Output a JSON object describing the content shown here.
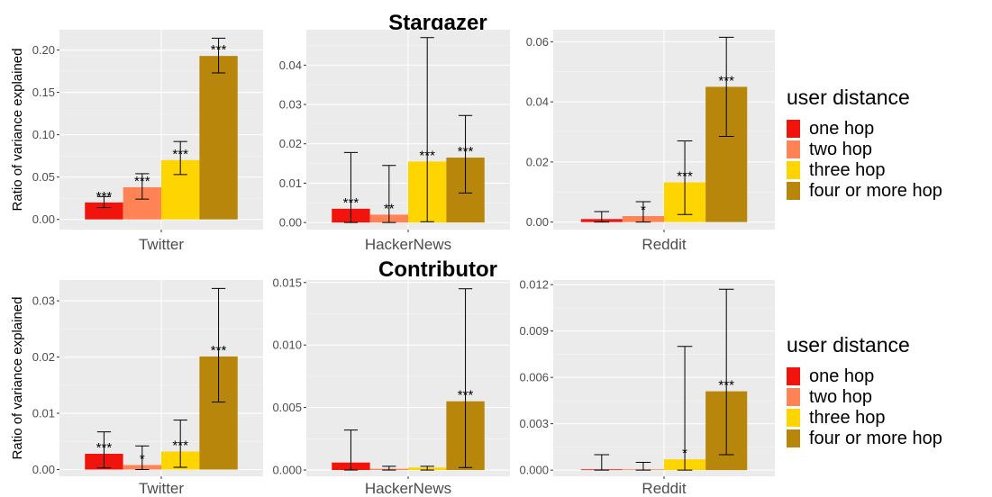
{
  "chart_data": {
    "type": "bar",
    "sections": [
      {
        "title": "Stargazer",
        "ylabel": "Ratio of variance explained",
        "legend": {
          "title": "user distance",
          "items": [
            {
              "label": "one hop",
              "color": "#f0140c"
            },
            {
              "label": "two hop",
              "color": "#ff8355"
            },
            {
              "label": "three hop",
              "color": "#ffd500"
            },
            {
              "label": "four or more hop",
              "color": "#b8860b"
            }
          ]
        },
        "panels": [
          {
            "category": "Twitter",
            "ylim": [
              -0.012,
              0.224
            ],
            "ticks": [
              0.0,
              0.05,
              0.1,
              0.15,
              0.2
            ],
            "tick_labels": [
              "0.00",
              "0.05",
              "0.10",
              "0.15",
              "0.20"
            ],
            "values": [
              0.02,
              0.038,
              0.07,
              0.193
            ],
            "error_low": [
              0.014,
              0.024,
              0.053,
              0.173
            ],
            "error_high": [
              0.027,
              0.054,
              0.092,
              0.214
            ],
            "significance": [
              "***",
              "***",
              "***",
              "***"
            ]
          },
          {
            "category": "HackerNews",
            "ylim": [
              -0.0018,
              0.049
            ],
            "ticks": [
              0.0,
              0.01,
              0.02,
              0.03,
              0.04
            ],
            "tick_labels": [
              "0.00",
              "0.01",
              "0.02",
              "0.03",
              "0.04"
            ],
            "values": [
              0.0035,
              0.002,
              0.0155,
              0.0165
            ],
            "error_low": [
              0.0,
              0.0,
              0.0002,
              0.0075
            ],
            "error_high": [
              0.0178,
              0.0145,
              0.047,
              0.0272
            ],
            "significance": [
              "***",
              "**",
              "***",
              "***"
            ]
          },
          {
            "category": "Reddit",
            "ylim": [
              -0.0025,
              0.064
            ],
            "ticks": [
              0.0,
              0.02,
              0.04,
              0.06
            ],
            "tick_labels": [
              "0.00",
              "0.02",
              "0.04",
              "0.06"
            ],
            "values": [
              0.001,
              0.002,
              0.0132,
              0.045
            ],
            "error_low": [
              0.0,
              0.0,
              0.0025,
              0.0285
            ],
            "error_high": [
              0.0035,
              0.0068,
              0.027,
              0.0615
            ],
            "significance": [
              "",
              "*",
              "***",
              "***"
            ]
          }
        ]
      },
      {
        "title": "Contributor",
        "ylabel": "Ratio of variance explained",
        "legend": {
          "title": "user distance",
          "items": [
            {
              "label": "one hop",
              "color": "#f0140c"
            },
            {
              "label": "two hop",
              "color": "#ff8355"
            },
            {
              "label": "three hop",
              "color": "#ffd500"
            },
            {
              "label": "four or more hop",
              "color": "#b8860b"
            }
          ]
        },
        "panels": [
          {
            "category": "Twitter",
            "ylim": [
              -0.0012,
              0.0337
            ],
            "ticks": [
              0.0,
              0.01,
              0.02,
              0.03
            ],
            "tick_labels": [
              "0.00",
              "0.01",
              "0.02",
              "0.03"
            ],
            "values": [
              0.0028,
              0.0008,
              0.0032,
              0.0201
            ],
            "error_low": [
              0.0003,
              0.0,
              0.0004,
              0.012
            ],
            "error_high": [
              0.0067,
              0.0042,
              0.0088,
              0.0322
            ],
            "significance": [
              "***",
              "*",
              "***",
              "***"
            ]
          },
          {
            "category": "HackerNews",
            "ylim": [
              -0.0005,
              0.0152
            ],
            "ticks": [
              0.0,
              0.005,
              0.01,
              0.015
            ],
            "tick_labels": [
              "0.000",
              "0.005",
              "0.010",
              "0.015"
            ],
            "values": [
              0.0006,
              0.0001,
              0.0002,
              0.0055
            ],
            "error_low": [
              0.0,
              0.0,
              0.0,
              0.0002
            ],
            "error_high": [
              0.0032,
              0.0003,
              0.0003,
              0.0145
            ],
            "significance": [
              "",
              "",
              "",
              "***"
            ]
          },
          {
            "category": "Reddit",
            "ylim": [
              -0.0004,
              0.0123
            ],
            "ticks": [
              0.0,
              0.003,
              0.006,
              0.009,
              0.012
            ],
            "tick_labels": [
              "0.000",
              "0.003",
              "0.006",
              "0.009",
              "0.012"
            ],
            "values": [
              5e-05,
              5e-05,
              0.0007,
              0.0051
            ],
            "error_low": [
              0.0,
              0.0,
              0.0,
              0.001
            ],
            "error_high": [
              0.001,
              0.0005,
              0.008,
              0.0117
            ],
            "significance": [
              "",
              "",
              "*",
              "***"
            ]
          }
        ]
      }
    ]
  }
}
